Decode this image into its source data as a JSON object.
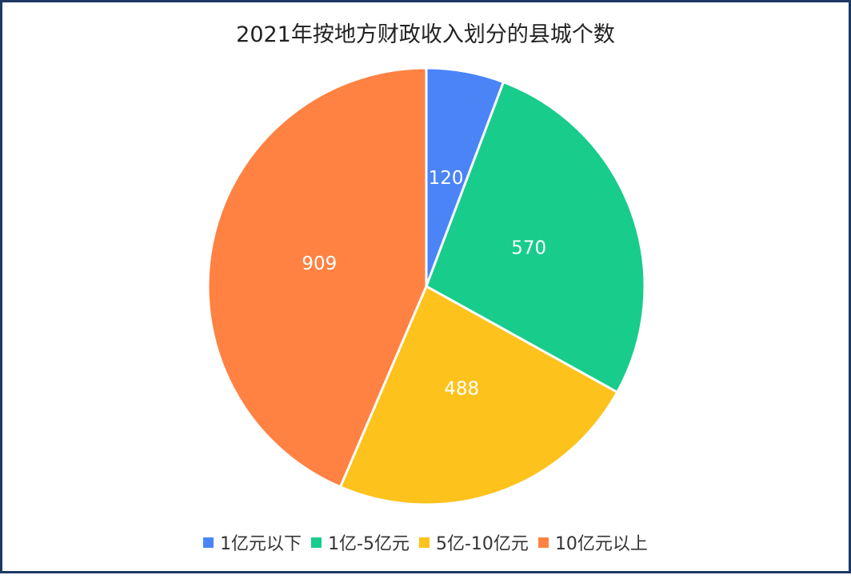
{
  "chart_data": {
    "type": "pie",
    "title": "2021年按地方财政收入划分的县城个数",
    "categories": [
      "1亿元以下",
      "1亿-5亿元",
      "5亿-10亿元",
      "10亿元以上"
    ],
    "values": [
      120,
      570,
      488,
      909
    ],
    "colors": [
      "#4a84f7",
      "#18cc8c",
      "#fdc21b",
      "#ff8243"
    ],
    "legend": "bottom",
    "start_angle": "12 o'clock",
    "direction": "clockwise"
  }
}
